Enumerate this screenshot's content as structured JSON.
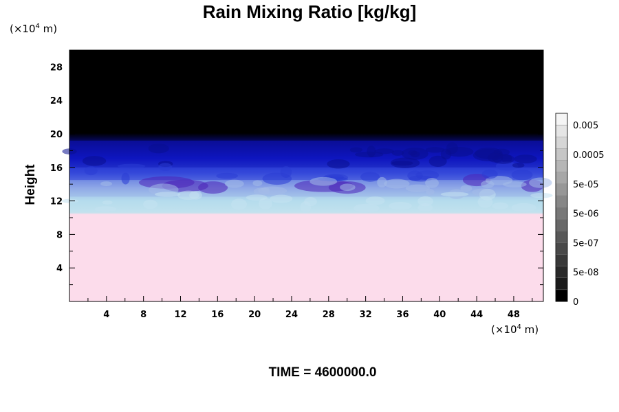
{
  "chart_data": {
    "type": "heatmap",
    "title": "Rain Mixing Ratio [kg/kg]",
    "ylabel": "Height",
    "x_unit": {
      "prefix": "(×10",
      "exp": "4",
      "suffix": " m)"
    },
    "y_unit": {
      "prefix": "(×10",
      "exp": "4",
      "suffix": " m)"
    },
    "xlim": [
      0,
      51.2
    ],
    "ylim": [
      0,
      30
    ],
    "x_ticks": [
      4,
      8,
      12,
      16,
      20,
      24,
      28,
      32,
      36,
      40,
      44,
      48
    ],
    "y_ticks": [
      4,
      8,
      12,
      16,
      20,
      24,
      28
    ],
    "colorbar": {
      "labels": [
        "0.005",
        "0.0005",
        "5e-05",
        "5e-06",
        "5e-07",
        "5e-08",
        "0"
      ],
      "levels": 16
    },
    "bands": [
      {
        "from": 0,
        "to": 10.5,
        "color": "#fcdcec"
      },
      {
        "from": 10.5,
        "to": 12.5,
        "color": "#b8dcec"
      },
      {
        "from": 12.5,
        "to": 14.5,
        "color": "#9cb4e4"
      },
      {
        "from": 14.5,
        "to": 16.0,
        "color": "#3040d8"
      },
      {
        "from": 16.0,
        "to": 19.2,
        "color": "#0c10b0"
      },
      {
        "from": 19.2,
        "to": 30,
        "color": "#000000"
      }
    ],
    "time_label": "TIME = 4600000.0"
  }
}
